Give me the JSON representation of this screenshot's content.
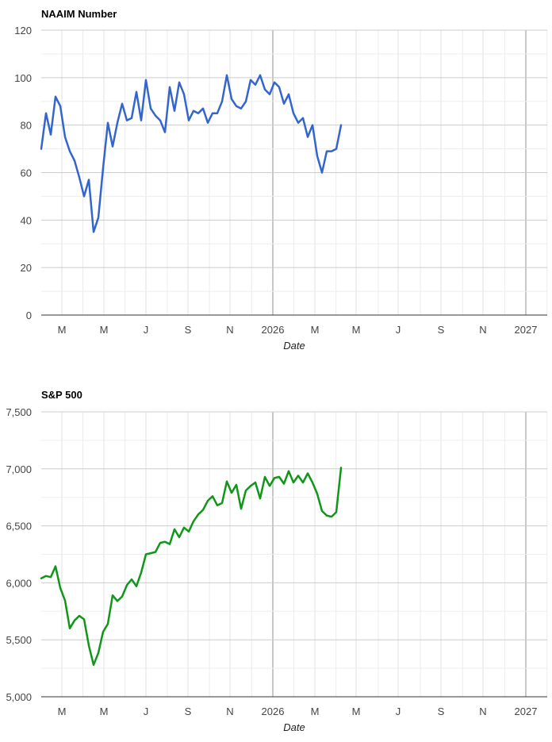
{
  "chart_data": [
    {
      "type": "line",
      "title": "NAAIM Number",
      "xlabel": "Date",
      "ylabel": "",
      "ylim": [
        0,
        120
      ],
      "yticks": [
        "0",
        "20",
        "40",
        "60",
        "80",
        "100",
        "120"
      ],
      "xticks": [
        "M",
        "M",
        "J",
        "S",
        "N",
        "2026",
        "M",
        "M",
        "J",
        "S",
        "N",
        "2027"
      ],
      "grid": true,
      "color": "#3366cc",
      "series": [
        {
          "values": [
            70,
            85,
            76,
            92,
            88,
            75,
            69,
            65,
            58,
            50,
            57,
            35,
            41,
            62,
            81,
            71,
            81,
            89,
            82,
            83,
            94,
            82,
            99,
            87,
            84,
            82,
            77,
            96,
            86,
            98,
            93,
            82,
            86,
            85,
            87,
            81,
            85,
            85,
            90,
            101,
            91,
            88,
            87,
            90,
            99,
            97,
            101,
            95,
            93,
            98,
            96,
            89,
            93,
            85,
            81,
            83,
            75,
            80,
            67,
            60,
            69,
            69,
            70,
            80
          ]
        }
      ]
    },
    {
      "type": "line",
      "title": "S&P 500",
      "xlabel": "Date",
      "ylabel": "",
      "ylim": [
        5000,
        7500
      ],
      "yticks": [
        "5,000",
        "5,500",
        "6,000",
        "6,500",
        "7,000",
        "7,500"
      ],
      "xticks": [
        "M",
        "M",
        "J",
        "S",
        "N",
        "2026",
        "M",
        "M",
        "J",
        "S",
        "N",
        "2027"
      ],
      "grid": true,
      "color": "#109618",
      "series": [
        {
          "values": [
            6040,
            6060,
            6050,
            6145,
            5955,
            5845,
            5600,
            5670,
            5710,
            5680,
            5450,
            5280,
            5385,
            5570,
            5640,
            5890,
            5840,
            5880,
            5980,
            6030,
            5970,
            6090,
            6250,
            6260,
            6270,
            6350,
            6360,
            6340,
            6470,
            6400,
            6485,
            6450,
            6540,
            6600,
            6640,
            6720,
            6760,
            6680,
            6700,
            6890,
            6790,
            6860,
            6650,
            6810,
            6850,
            6880,
            6740,
            6930,
            6850,
            6920,
            6930,
            6870,
            6980,
            6880,
            6940,
            6880,
            6960,
            6880,
            6780,
            6630,
            6590,
            6580,
            6620,
            7010
          ]
        }
      ]
    }
  ]
}
